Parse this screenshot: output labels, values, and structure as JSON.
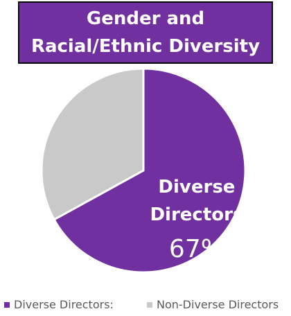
{
  "chart_data": {
    "type": "pie",
    "title": "Gender and Racial/Ethnic Diversity",
    "categories": [
      "Diverse Directors:",
      "Non-Diverse Directors"
    ],
    "values": [
      67,
      33
    ],
    "value_labels": [
      "67%",
      null
    ],
    "slice_labels": [
      "Diverse Directors",
      null
    ],
    "colors": [
      "#7030a0",
      "#c9c9c9"
    ],
    "legend": "bottom"
  }
}
